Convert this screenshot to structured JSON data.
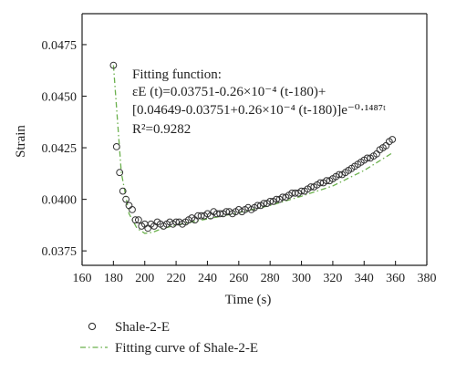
{
  "chart_data": {
    "type": "scatter",
    "xlabel": "Time (s)",
    "ylabel": "Strain",
    "xlim": [
      160,
      380
    ],
    "ylim": [
      0.0368,
      0.049
    ],
    "x_ticks": [
      "160",
      "180",
      "200",
      "220",
      "240",
      "260",
      "280",
      "300",
      "320",
      "340",
      "360",
      "380"
    ],
    "y_ticks": [
      "0.0375",
      "0.0400",
      "0.0425",
      "0.0450",
      "0.0475"
    ],
    "grid": false,
    "legend_position": "bottom-left, outside plot",
    "annotation": {
      "line1": "Fitting function:",
      "line2": "εE (t)=0.03751-0.26×10⁻⁴ (t-180)+",
      "line3": "[0.04649-0.03751+0.26×10⁻⁴ (t-180)]e⁻⁰·¹⁴⁸⁷ᵗ",
      "line4": "R²=0.9282"
    },
    "series": [
      {
        "name": "Shale-2-E",
        "style": "open-circle",
        "color": "#333333",
        "x": [
          180,
          182,
          184,
          186,
          188,
          190,
          192,
          194,
          196,
          198,
          200,
          202,
          204,
          206,
          208,
          210,
          212,
          214,
          216,
          218,
          220,
          222,
          224,
          226,
          228,
          230,
          232,
          234,
          236,
          238,
          240,
          242,
          244,
          246,
          248,
          250,
          252,
          254,
          256,
          258,
          260,
          262,
          264,
          266,
          268,
          270,
          272,
          274,
          276,
          278,
          280,
          282,
          284,
          286,
          288,
          290,
          292,
          294,
          296,
          298,
          300,
          302,
          304,
          306,
          308,
          310,
          312,
          314,
          316,
          318,
          320,
          322,
          324,
          326,
          328,
          330,
          332,
          334,
          336,
          338,
          340,
          342,
          344,
          346,
          348,
          350,
          352,
          354,
          356,
          358
        ],
        "y": [
          0.0465,
          0.04255,
          0.0413,
          0.0404,
          0.04,
          0.0397,
          0.0395,
          0.039,
          0.039,
          0.0387,
          0.0388,
          0.0386,
          0.0388,
          0.0387,
          0.0389,
          0.0388,
          0.0387,
          0.0388,
          0.0389,
          0.0388,
          0.0389,
          0.0389,
          0.0388,
          0.0389,
          0.039,
          0.0391,
          0.039,
          0.0392,
          0.0392,
          0.0392,
          0.0393,
          0.0392,
          0.0394,
          0.0393,
          0.0393,
          0.0393,
          0.0394,
          0.0394,
          0.0393,
          0.0394,
          0.0395,
          0.0394,
          0.0395,
          0.0396,
          0.0395,
          0.0396,
          0.0397,
          0.0397,
          0.0398,
          0.0398,
          0.0399,
          0.0399,
          0.04,
          0.04,
          0.0401,
          0.0401,
          0.0402,
          0.0403,
          0.0403,
          0.0403,
          0.0404,
          0.0404,
          0.0405,
          0.0406,
          0.0406,
          0.0407,
          0.0408,
          0.0408,
          0.0409,
          0.0409,
          0.041,
          0.0411,
          0.0412,
          0.0412,
          0.0413,
          0.0414,
          0.0415,
          0.0416,
          0.0417,
          0.0418,
          0.0419,
          0.042,
          0.042,
          0.0421,
          0.0422,
          0.0424,
          0.0425,
          0.0426,
          0.0428,
          0.0429
        ]
      },
      {
        "name": "Fitting curve of Shale-2-E",
        "style": "dash-dot-line",
        "color": "#6ab04c",
        "x": [
          180,
          185,
          190,
          195,
          200,
          205,
          210,
          220,
          240,
          260,
          280,
          300,
          320,
          340,
          358
        ],
        "y": [
          0.0465,
          0.0413,
          0.0393,
          0.0386,
          0.03835,
          0.0384,
          0.03855,
          0.03875,
          0.03905,
          0.03935,
          0.0397,
          0.04015,
          0.04065,
          0.0414,
          0.04225
        ]
      }
    ]
  }
}
